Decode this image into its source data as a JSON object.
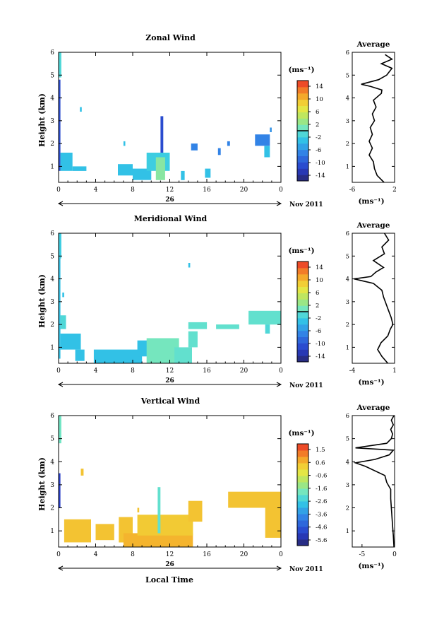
{
  "figure": {
    "xlabel": "Local Time",
    "date_day": "26",
    "date_month": "Nov 2011"
  },
  "chart_data": [
    {
      "type": "heatmap",
      "title": "Zonal Wind",
      "ylabel": "Height (km)",
      "xlabel": "Local Time",
      "x_ticks": [
        "0",
        "4",
        "8",
        "12",
        "16",
        "20",
        "0"
      ],
      "xlim": [
        0,
        24
      ],
      "ylim": [
        0.3,
        6.0
      ],
      "y_ticks": [
        1,
        2,
        3,
        4,
        5,
        6
      ],
      "colorbar": {
        "unit": "(ms⁻¹)",
        "ticks": [
          "14",
          "10",
          "6",
          "2",
          "-2",
          "-6",
          "-10",
          "-14"
        ],
        "range": [
          -16,
          16
        ],
        "zero_line": 0
      },
      "cells": [
        {
          "t0": 0.0,
          "t1": 0.3,
          "z0": 4.9,
          "z1": 6.0,
          "v": -1
        },
        {
          "t0": 0.0,
          "t1": 0.2,
          "z0": 0.8,
          "z1": 4.8,
          "v": -11
        },
        {
          "t0": 0.2,
          "t1": 1.5,
          "z0": 0.8,
          "z1": 1.6,
          "v": -3
        },
        {
          "t0": 2.3,
          "t1": 2.5,
          "z0": 3.4,
          "z1": 3.6,
          "v": -3
        },
        {
          "t0": 1.5,
          "t1": 3.0,
          "z0": 0.8,
          "z1": 1.0,
          "v": -3
        },
        {
          "t0": 6.4,
          "t1": 8.0,
          "z0": 0.6,
          "z1": 1.1,
          "v": -3
        },
        {
          "t0": 7.0,
          "t1": 7.2,
          "z0": 1.9,
          "z1": 2.1,
          "v": -3
        },
        {
          "t0": 8.0,
          "t1": 10.0,
          "z0": 0.4,
          "z1": 0.9,
          "v": -3
        },
        {
          "t0": 9.5,
          "t1": 12.0,
          "z0": 0.8,
          "z1": 1.6,
          "v": -2
        },
        {
          "t0": 10.5,
          "t1": 11.5,
          "z0": 0.4,
          "z1": 1.4,
          "v": 2
        },
        {
          "t0": 11.0,
          "t1": 11.3,
          "z0": 1.6,
          "z1": 3.2,
          "v": -11
        },
        {
          "t0": 13.2,
          "t1": 13.6,
          "z0": 0.4,
          "z1": 0.8,
          "v": -3
        },
        {
          "t0": 15.8,
          "t1": 16.4,
          "z0": 0.5,
          "z1": 0.9,
          "v": -3
        },
        {
          "t0": 14.3,
          "t1": 15.0,
          "z0": 1.7,
          "z1": 2.0,
          "v": -7
        },
        {
          "t0": 17.2,
          "t1": 17.5,
          "z0": 1.5,
          "z1": 1.8,
          "v": -7
        },
        {
          "t0": 18.2,
          "t1": 18.5,
          "z0": 1.9,
          "z1": 2.1,
          "v": -7
        },
        {
          "t0": 21.2,
          "t1": 22.8,
          "z0": 1.9,
          "z1": 2.4,
          "v": -7
        },
        {
          "t0": 22.2,
          "t1": 22.8,
          "z0": 1.4,
          "z1": 1.9,
          "v": -3
        },
        {
          "t0": 22.8,
          "t1": 23.0,
          "z0": 2.5,
          "z1": 2.7,
          "v": -6
        }
      ],
      "profile": {
        "title": "Average",
        "xlabel": "(ms⁻¹)",
        "x_ticks": [
          -6,
          2
        ],
        "xlim": [
          -6,
          2
        ],
        "z": [
          0.3,
          0.6,
          0.9,
          1.2,
          1.5,
          1.8,
          2.1,
          2.4,
          2.7,
          3.0,
          3.3,
          3.6,
          3.9,
          4.2,
          4.35,
          4.5,
          4.6,
          4.8,
          5.0,
          5.3,
          5.5,
          5.7,
          5.9
        ],
        "values": [
          0.0,
          -1.3,
          -1.8,
          -2.0,
          -2.8,
          -2.2,
          -2.8,
          -2.2,
          -2.6,
          -1.8,
          -2.2,
          -1.5,
          -2.0,
          -0.5,
          -0.4,
          -2.5,
          -4.3,
          -1.0,
          0.5,
          1.5,
          -0.5,
          1.5,
          0.2
        ]
      }
    },
    {
      "type": "heatmap",
      "title": "Meridional Wind",
      "ylabel": "Height (km)",
      "xlabel": "Local Time",
      "x_ticks": [
        "0",
        "4",
        "8",
        "12",
        "16",
        "20",
        "0"
      ],
      "xlim": [
        0,
        24
      ],
      "ylim": [
        0.3,
        6.0
      ],
      "y_ticks": [
        1,
        2,
        3,
        4,
        5,
        6
      ],
      "colorbar": {
        "unit": "(ms⁻¹)",
        "ticks": [
          "14",
          "10",
          "6",
          "2",
          "-2",
          "-6",
          "-10",
          "-14"
        ],
        "range": [
          -16,
          16
        ],
        "zero_line": 0
      },
      "cells": [
        {
          "t0": 0.0,
          "t1": 0.3,
          "z0": 4.9,
          "z1": 6.0,
          "v": -2
        },
        {
          "t0": 0.0,
          "t1": 0.2,
          "z0": 0.5,
          "z1": 4.9,
          "v": -3
        },
        {
          "t0": 0.2,
          "t1": 2.4,
          "z0": 0.9,
          "z1": 1.6,
          "v": -3
        },
        {
          "t0": 0.2,
          "t1": 0.8,
          "z0": 1.8,
          "z1": 2.4,
          "v": -1
        },
        {
          "t0": 0.4,
          "t1": 0.6,
          "z0": 3.2,
          "z1": 3.4,
          "v": -3
        },
        {
          "t0": 1.8,
          "t1": 2.8,
          "z0": 0.4,
          "z1": 0.9,
          "v": -3
        },
        {
          "t0": 3.8,
          "t1": 9.0,
          "z0": 0.3,
          "z1": 0.9,
          "v": -3
        },
        {
          "t0": 8.5,
          "t1": 11.5,
          "z0": 0.6,
          "z1": 1.3,
          "v": -3
        },
        {
          "t0": 9.5,
          "t1": 13.0,
          "z0": 0.3,
          "z1": 1.4,
          "v": 1
        },
        {
          "t0": 12.5,
          "t1": 14.4,
          "z0": 0.3,
          "z1": 1.0,
          "v": 0
        },
        {
          "t0": 14.0,
          "t1": 15.0,
          "z0": 1.0,
          "z1": 1.7,
          "v": 0
        },
        {
          "t0": 14.0,
          "t1": 16.0,
          "z0": 1.8,
          "z1": 2.1,
          "v": 0
        },
        {
          "t0": 17.0,
          "t1": 19.5,
          "z0": 1.8,
          "z1": 2.0,
          "v": 0
        },
        {
          "t0": 20.5,
          "t1": 24.0,
          "z0": 2.0,
          "z1": 2.6,
          "v": 0
        },
        {
          "t0": 22.3,
          "t1": 22.8,
          "z0": 1.6,
          "z1": 2.0,
          "v": -1
        },
        {
          "t0": 14.0,
          "t1": 14.2,
          "z0": 4.5,
          "z1": 4.7,
          "v": -3
        }
      ],
      "profile": {
        "title": "Average",
        "xlabel": "(ms⁻¹)",
        "x_ticks": [
          -4,
          1
        ],
        "xlim": [
          -4,
          1
        ],
        "z": [
          0.3,
          0.6,
          0.9,
          1.2,
          1.5,
          1.8,
          2.0,
          2.3,
          2.6,
          2.9,
          3.2,
          3.5,
          3.8,
          4.0,
          4.1,
          4.3,
          4.5,
          4.8,
          5.1,
          5.4,
          5.7,
          6.0
        ],
        "values": [
          0.2,
          -0.5,
          -1.0,
          -0.6,
          0.2,
          0.5,
          0.8,
          0.6,
          0.3,
          0.0,
          -0.3,
          -0.5,
          -1.5,
          -3.8,
          -1.8,
          -1.2,
          -0.3,
          -1.5,
          -0.2,
          -0.5,
          0.3,
          -0.2
        ]
      }
    },
    {
      "type": "heatmap",
      "title": "Vertical Wind",
      "ylabel": "Height (km)",
      "xlabel": "Local Time",
      "x_ticks": [
        "0",
        "4",
        "8",
        "12",
        "16",
        "20",
        "0"
      ],
      "xlim": [
        0,
        24
      ],
      "ylim": [
        0.3,
        6.0
      ],
      "y_ticks": [
        1,
        2,
        3,
        4,
        5,
        6
      ],
      "colorbar": {
        "unit": "(ms⁻¹)",
        "ticks": [
          "1.5",
          "0.6",
          "-0.6",
          "-1.6",
          "-2.6",
          "-3.6",
          "-4.6",
          "-5.6"
        ],
        "range": [
          -6.0,
          2.0
        ],
        "zero_line": null
      },
      "cells": [
        {
          "t0": 0.0,
          "t1": 0.3,
          "z0": 4.8,
          "z1": 6.0,
          "v": -1.8
        },
        {
          "t0": 0.0,
          "t1": 0.2,
          "z0": 2.0,
          "z1": 3.5,
          "v": -5.0
        },
        {
          "t0": 0.6,
          "t1": 3.5,
          "z0": 0.5,
          "z1": 1.5,
          "v": 0.4
        },
        {
          "t0": 2.4,
          "t1": 2.7,
          "z0": 3.4,
          "z1": 3.7,
          "v": 0.4
        },
        {
          "t0": 4.0,
          "t1": 6.0,
          "z0": 0.6,
          "z1": 1.3,
          "v": 0.4
        },
        {
          "t0": 6.5,
          "t1": 8.0,
          "z0": 0.5,
          "z1": 1.6,
          "v": 0.4
        },
        {
          "t0": 7.0,
          "t1": 14.5,
          "z0": 0.3,
          "z1": 0.9,
          "v": 0.6
        },
        {
          "t0": 8.5,
          "t1": 14.5,
          "z0": 0.8,
          "z1": 1.7,
          "v": 0.3
        },
        {
          "t0": 10.7,
          "t1": 11.0,
          "z0": 0.9,
          "z1": 2.9,
          "v": -2.0
        },
        {
          "t0": 14.0,
          "t1": 15.5,
          "z0": 1.4,
          "z1": 2.3,
          "v": 0.4
        },
        {
          "t0": 18.3,
          "t1": 24.0,
          "z0": 2.0,
          "z1": 2.7,
          "v": 0.4
        },
        {
          "t0": 22.3,
          "t1": 24.0,
          "z0": 0.7,
          "z1": 2.0,
          "v": 0.4
        },
        {
          "t0": 8.5,
          "t1": 8.7,
          "z0": 1.8,
          "z1": 2.0,
          "v": 0.4
        }
      ],
      "profile": {
        "title": "Average",
        "xlabel": "(ms⁻¹)",
        "x_ticks": [
          -5,
          0
        ],
        "xlim": [
          -6.5,
          0
        ],
        "z": [
          0.3,
          0.8,
          1.2,
          1.6,
          2.0,
          2.4,
          2.8,
          3.1,
          3.4,
          3.8,
          3.95,
          4.1,
          4.3,
          4.5,
          4.6,
          4.8,
          5.0,
          5.2,
          5.4,
          5.6,
          5.8,
          6.0
        ],
        "values": [
          -0.1,
          -0.2,
          -0.3,
          -0.4,
          -0.5,
          -0.6,
          -0.6,
          -1.2,
          -1.5,
          -4.5,
          -6.0,
          -3.0,
          -0.8,
          -0.2,
          -6.0,
          -1.2,
          -0.5,
          -0.3,
          -0.6,
          -0.2,
          -0.5,
          -0.1
        ]
      }
    }
  ]
}
